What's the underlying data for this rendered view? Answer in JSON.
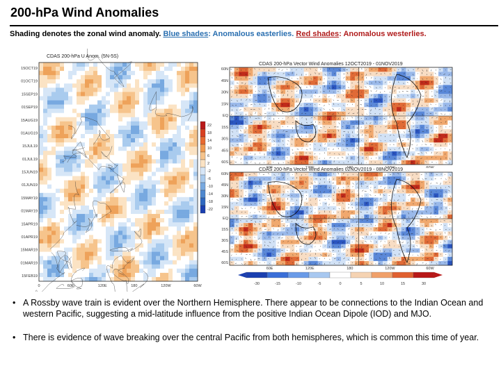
{
  "slide": {
    "title": "200-hPa Wind Anomalies",
    "subtitle": {
      "intro": "Shading denotes the zonal wind anomaly. ",
      "blue_link": "Blue shades",
      "blue_text": ": Anomalous easterlies. ",
      "red_link": "Red shades",
      "red_text": ": Anomalous westerlies."
    }
  },
  "hovmoller": {
    "title": "CDAS 200-hPa U Anom. (5N-5S)",
    "y_ticks": [
      "15OCT19",
      "01OCT19",
      "15SEP19",
      "01SEP19",
      "15AUG19",
      "01AUG19",
      "15JUL19",
      "01JUL19",
      "15JUN19",
      "01JUN19",
      "15MAY19",
      "01MAY19",
      "15APR19",
      "01APR19",
      "15MAR19",
      "01MAR19",
      "15FEB19"
    ],
    "x_ticks": [
      "0",
      "60E",
      "120E",
      "180",
      "120W",
      "60W"
    ],
    "colorbar_ticks": [
      "22",
      "18",
      "14",
      "10",
      "6",
      "2",
      "-2",
      "-6",
      "-10",
      "-14",
      "-18",
      "-22"
    ],
    "colors": {
      "east": "#5a9ad8",
      "west": "#e08a2e"
    }
  },
  "maps": [
    {
      "title": "CDAS 200-hPa Vector Wind Anomalies  12OCT2019 - 01NOV2019",
      "lat_ticks": [
        "60N",
        "45N",
        "30N",
        "15N",
        "EQ",
        "15S",
        "30S",
        "45S",
        "60S"
      ],
      "lon_ticks": [
        "60E",
        "120E",
        "180",
        "120W",
        "60W"
      ]
    },
    {
      "title": "CDAS 200-hPa Vector Wind Anomalies  02NOV2019 - 08NOV2019",
      "lat_ticks": [
        "60N",
        "45N",
        "30N",
        "15N",
        "EQ",
        "15S",
        "30S",
        "45S",
        "60S"
      ],
      "lon_ticks": [
        "60E",
        "120E",
        "180",
        "120W",
        "60W"
      ]
    }
  ],
  "colorbar": {
    "ticks": [
      "-30",
      "-15",
      "-10",
      "-5",
      "0",
      "5",
      "10",
      "15",
      "30"
    ],
    "colors": [
      "#1a3fb0",
      "#3a6fd8",
      "#6a9be8",
      "#a8c8f0",
      "#ffffff",
      "#f5d3b3",
      "#f0a06a",
      "#e06030",
      "#b81818"
    ]
  },
  "bullets": [
    "A Rossby wave train is evident over the Northern Hemisphere. There appear to be connections to the Indian Ocean and western Pacific, suggesting a mid-latitude influence from the positive Indian Ocean Dipole (IOD) and MJO.",
    "There is evidence of wave breaking over the central Pacific from both hemispheres, which is common this time of year."
  ]
}
